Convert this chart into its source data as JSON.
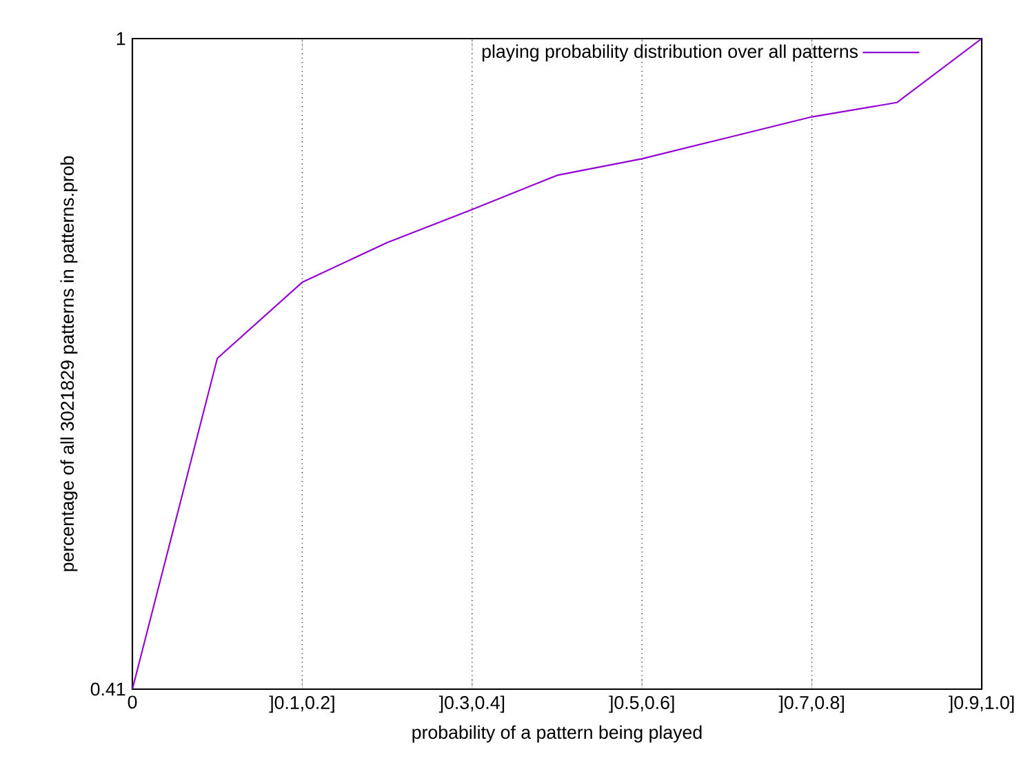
{
  "chart_data": {
    "type": "line",
    "xlabel": "probability of a pattern being played",
    "ylabel": "percentage of all 3021829 patterns in patterns.prob",
    "categories": [
      "0",
      null,
      "]0.1,0.2]",
      null,
      "]0.3,0.4]",
      null,
      "]0.5,0.6]",
      null,
      "]0.7,0.8]",
      null,
      "]0.9,1.0]"
    ],
    "series": [
      {
        "name": "playing probability distribution over all patterns",
        "color": "#9400d3",
        "values": [
          0.41,
          0.71,
          0.779,
          0.815,
          0.845,
          0.876,
          0.891,
          0.91,
          0.929,
          0.942,
          1
        ]
      }
    ],
    "ylim": [
      0.41,
      1
    ],
    "yticks": [
      0.41,
      1
    ],
    "grid": "x",
    "legend": "top right",
    "marker": "none",
    "line_style": "solid"
  }
}
